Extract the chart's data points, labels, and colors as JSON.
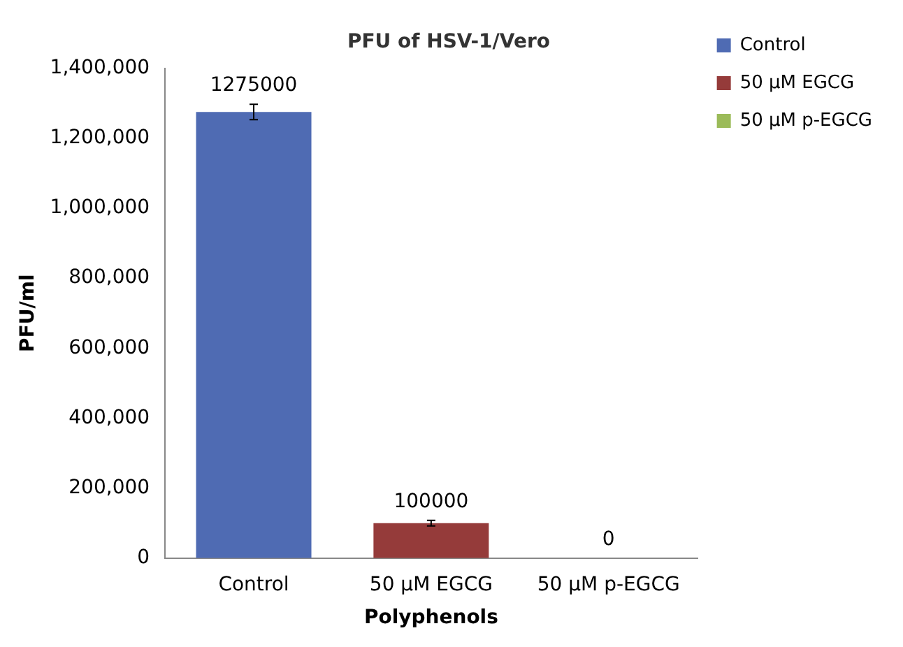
{
  "chart_data": {
    "type": "bar",
    "title": "PFU of HSV-1/Vero",
    "xlabel": "Polyphenols",
    "ylabel": "PFU/ml",
    "categories": [
      "Control",
      "50 µM EGCG",
      "50 µM p-EGCG"
    ],
    "series": [
      {
        "name": "Control",
        "color": "#4f6bb3",
        "values": [
          1275000,
          null,
          null
        ],
        "errors": [
          22000,
          null,
          null
        ]
      },
      {
        "name": "50 µM EGCG",
        "color": "#953b3a",
        "values": [
          null,
          100000,
          null
        ],
        "errors": [
          null,
          8000,
          null
        ]
      },
      {
        "name": "50 µM p-EGCG",
        "color": "#9bbb59",
        "values": [
          null,
          null,
          0
        ]
      }
    ],
    "ylim": [
      0,
      1400000
    ],
    "yticks": [
      0,
      {
        "value": 200000,
        "label": "200,000"
      },
      {
        "value": 400000,
        "label": "400,000"
      },
      {
        "value": 600000,
        "label": "600,000"
      },
      {
        "value": 800000,
        "label": "800,000"
      },
      {
        "value": 1000000,
        "label": "1,000,000"
      },
      {
        "value": 1200000,
        "label": "1,200,000"
      },
      {
        "value": 1400000,
        "label": "1,400,000"
      }
    ],
    "grid": false,
    "legend": "top right",
    "data_labels": true
  }
}
